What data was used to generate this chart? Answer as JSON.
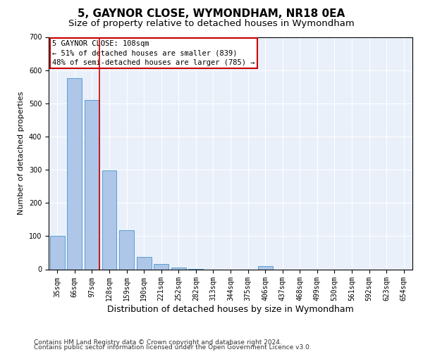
{
  "title1": "5, GAYNOR CLOSE, WYMONDHAM, NR18 0EA",
  "title2": "Size of property relative to detached houses in Wymondham",
  "xlabel": "Distribution of detached houses by size in Wymondham",
  "ylabel": "Number of detached properties",
  "categories": [
    "35sqm",
    "66sqm",
    "97sqm",
    "128sqm",
    "159sqm",
    "190sqm",
    "221sqm",
    "252sqm",
    "282sqm",
    "313sqm",
    "344sqm",
    "375sqm",
    "406sqm",
    "437sqm",
    "468sqm",
    "499sqm",
    "530sqm",
    "561sqm",
    "592sqm",
    "623sqm",
    "654sqm"
  ],
  "values": [
    100,
    575,
    510,
    297,
    118,
    37,
    16,
    6,
    1,
    0,
    0,
    0,
    9,
    0,
    0,
    0,
    0,
    0,
    0,
    0,
    0
  ],
  "bar_color": "#aec6e8",
  "bar_edgecolor": "#5a9fd4",
  "background_color": "#eaf0fa",
  "property_bin_index": 2,
  "annotation_line1": "5 GAYNOR CLOSE: 108sqm",
  "annotation_line2": "← 51% of detached houses are smaller (839)",
  "annotation_line3": "48% of semi-detached houses are larger (785) →",
  "annotation_box_color": "#ffffff",
  "annotation_box_edgecolor": "#cc0000",
  "vline_color": "#cc0000",
  "ylim": [
    0,
    700
  ],
  "yticks": [
    0,
    100,
    200,
    300,
    400,
    500,
    600,
    700
  ],
  "footer1": "Contains HM Land Registry data © Crown copyright and database right 2024.",
  "footer2": "Contains public sector information licensed under the Open Government Licence v3.0.",
  "title1_fontsize": 11,
  "title2_fontsize": 9.5,
  "xlabel_fontsize": 9,
  "ylabel_fontsize": 8,
  "tick_fontsize": 7,
  "footer_fontsize": 6.5,
  "ann_fontsize": 7.5
}
